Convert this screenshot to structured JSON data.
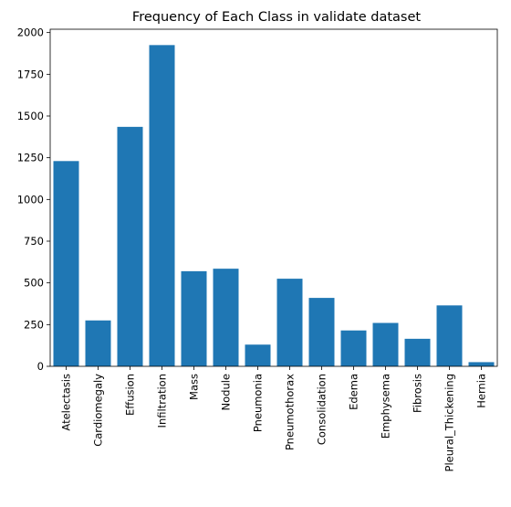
{
  "chart_data": {
    "type": "bar",
    "title": "Frequency of Each Class in validate dataset",
    "xlabel": "",
    "ylabel": "",
    "categories": [
      "Atelectasis",
      "Cardiomegaly",
      "Effusion",
      "Infiltration",
      "Mass",
      "Nodule",
      "Pneumonia",
      "Pneumothorax",
      "Consolidation",
      "Edema",
      "Emphysema",
      "Fibrosis",
      "Pleural_Thickening",
      "Hernia"
    ],
    "values": [
      1230,
      275,
      1435,
      1925,
      570,
      585,
      130,
      525,
      410,
      215,
      260,
      165,
      365,
      25
    ],
    "ylim": [
      0,
      2020
    ],
    "yticks": [
      0,
      250,
      500,
      750,
      1000,
      1250,
      1500,
      1750,
      2000
    ],
    "grid": false,
    "bar_color": "#1f77b4"
  }
}
